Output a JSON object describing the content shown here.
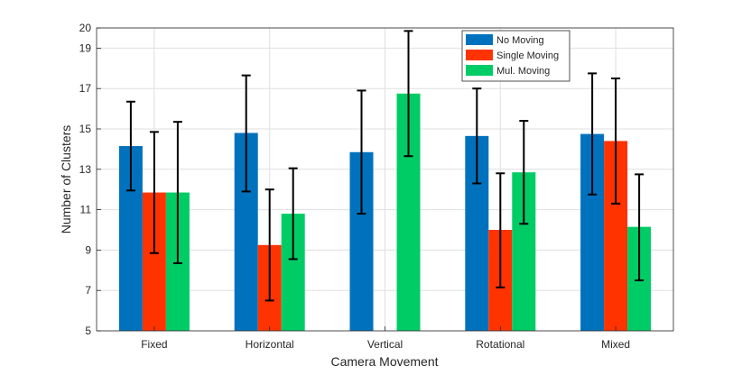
{
  "chart_data": {
    "type": "bar",
    "title": "",
    "xlabel": "Camera Movement",
    "ylabel": "Number of Clusters",
    "categories": [
      "Fixed",
      "Horizontal",
      "Vertical",
      "Rotational",
      "Mixed"
    ],
    "ylim": [
      5,
      20
    ],
    "yticks": [
      "5",
      "7",
      "9",
      "11",
      "13",
      "15",
      "17",
      "19",
      "20"
    ],
    "grid": true,
    "legend_position": "top-right",
    "series": [
      {
        "name": "No Moving",
        "color": "#0072BD",
        "values": [
          14.15,
          14.8,
          13.85,
          14.65,
          14.75
        ],
        "err_low": [
          11.95,
          11.9,
          10.8,
          12.3,
          11.75
        ],
        "err_high": [
          16.35,
          17.65,
          16.9,
          17.0,
          17.75
        ]
      },
      {
        "name": "Single Moving",
        "color": "#FF3300",
        "values": [
          11.85,
          9.25,
          null,
          10.0,
          14.4
        ],
        "err_low": [
          8.85,
          6.5,
          null,
          7.15,
          11.3
        ],
        "err_high": [
          14.85,
          12.0,
          null,
          12.8,
          17.5
        ]
      },
      {
        "name": "Mul. Moving",
        "color": "#00CC66",
        "values": [
          11.85,
          10.8,
          16.75,
          12.85,
          10.15
        ],
        "err_low": [
          8.35,
          8.55,
          13.65,
          10.3,
          7.5
        ],
        "err_high": [
          15.35,
          13.05,
          19.85,
          15.4,
          12.75
        ]
      }
    ]
  }
}
